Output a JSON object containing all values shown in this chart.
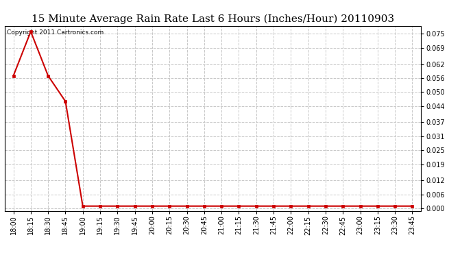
{
  "title": "15 Minute Average Rain Rate Last 6 Hours (Inches/Hour) 20110903",
  "copyright_text": "Copyright 2011 Cartronics.com",
  "background_color": "#ffffff",
  "plot_background": "#ffffff",
  "grid_color": "#c8c8c8",
  "line_color": "#cc0000",
  "marker_color": "#cc0000",
  "x_labels": [
    "18:00",
    "18:15",
    "18:30",
    "18:45",
    "19:00",
    "19:15",
    "19:30",
    "19:45",
    "20:00",
    "20:15",
    "20:30",
    "20:45",
    "21:00",
    "21:15",
    "21:30",
    "21:45",
    "22:00",
    "22:15",
    "22:30",
    "22:45",
    "23:00",
    "23:15",
    "23:30",
    "23:45"
  ],
  "y_values": [
    0.057,
    0.076,
    0.057,
    0.046,
    0.001,
    0.001,
    0.001,
    0.001,
    0.001,
    0.001,
    0.001,
    0.001,
    0.001,
    0.001,
    0.001,
    0.001,
    0.001,
    0.001,
    0.001,
    0.001,
    0.001,
    0.001,
    0.001,
    0.001
  ],
  "yticks": [
    0.0,
    0.006,
    0.012,
    0.019,
    0.025,
    0.031,
    0.037,
    0.044,
    0.05,
    0.056,
    0.062,
    0.069,
    0.075
  ],
  "ylim": [
    -0.001,
    0.0785
  ],
  "title_fontsize": 11,
  "tick_fontsize": 7,
  "copyright_fontsize": 6.5
}
